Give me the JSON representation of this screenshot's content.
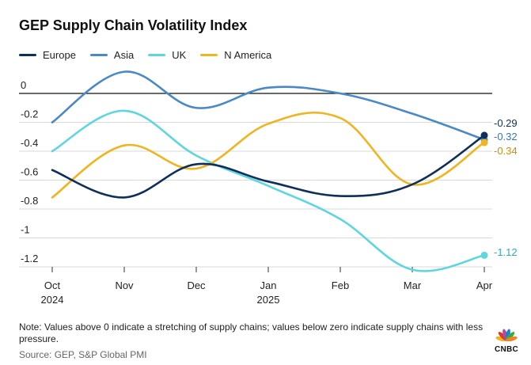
{
  "title": "GEP Supply Chain Volatility Index",
  "note": "Note: Values above 0 indicate a stretching of supply chains; values below zero indicate supply chains with less pressure.",
  "source": "Source: GEP, S&P Global PMI",
  "logo": {
    "text": "CNBC",
    "colors": [
      "#f6b21b",
      "#e0372b",
      "#b64a9b",
      "#1c84c6",
      "#39a845",
      "#f58220"
    ]
  },
  "chart_data": {
    "type": "line",
    "title": "GEP Supply Chain Volatility Index",
    "xlabel": "",
    "ylabel": "",
    "ylim": [
      -1.3,
      0.1
    ],
    "yticks": [
      0,
      -0.2,
      -0.4,
      -0.6,
      -0.8,
      -1,
      -1.2
    ],
    "ytick_labels": [
      "0",
      "-0.2",
      "-0.4",
      "-0.6",
      "-0.8",
      "-1",
      "-1.2"
    ],
    "categories": [
      "Oct",
      "Nov",
      "Dec",
      "Jan",
      "Feb",
      "Mar",
      "Apr"
    ],
    "category_sublabels": [
      "2024",
      "",
      "",
      "2025",
      "",
      "",
      ""
    ],
    "grid": "horizontal",
    "legend_position": "top-left",
    "series": [
      {
        "name": "Europe",
        "color": "#0e2f5a",
        "values": [
          -0.53,
          -0.72,
          -0.49,
          -0.61,
          -0.71,
          -0.63,
          -0.29
        ],
        "end_label": "-0.29"
      },
      {
        "name": "Asia",
        "color": "#4a89c8",
        "values": [
          -0.2,
          0.15,
          -0.1,
          0.04,
          0.0,
          -0.14,
          -0.32
        ],
        "end_label": "-0.32"
      },
      {
        "name": "UK",
        "color": "#5dd6e0",
        "values": [
          -0.4,
          -0.12,
          -0.43,
          -0.64,
          -0.87,
          -1.22,
          -1.12
        ],
        "end_label": "-1.12"
      },
      {
        "name": "N America",
        "color": "#f0b420",
        "values": [
          -0.72,
          -0.36,
          -0.52,
          -0.21,
          -0.17,
          -0.63,
          -0.34
        ],
        "end_label": "-0.34"
      }
    ]
  }
}
